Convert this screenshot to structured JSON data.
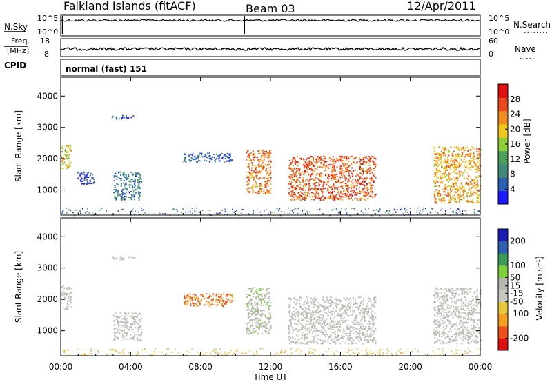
{
  "header": {
    "station": "Falkland Islands (fitACF)",
    "beam": "Beam 03",
    "date": "12/Apr/2011"
  },
  "top_panels": {
    "nsky_label": "N.Sky",
    "nsearch_label": "N.Search",
    "nsky_ticks_left": [
      "10^5",
      "10^0"
    ],
    "nsky_ticks_right": [
      "10^5",
      "10^0"
    ],
    "freq_label_1": "Freq.",
    "freq_label_2": "[MHz]",
    "freq_ticks": [
      "18",
      "8"
    ],
    "nave_label": "Nave",
    "nave_ticks": [
      "60",
      "0"
    ],
    "cpid_label": "CPID",
    "cpid_value": "normal (fast) 151"
  },
  "colors": {
    "power_scale": [
      "#1a1aff",
      "#2d5fb3",
      "#3f8a7a",
      "#4da05a",
      "#8fcf3a",
      "#f0c81e",
      "#f28c1e",
      "#ec4a1e",
      "#e01010"
    ],
    "velocity_scale": [
      "#e01010",
      "#f0501e",
      "#f5a020",
      "#e8c838",
      "#c8c8c0",
      "#b8b8b0",
      "#7ed03a",
      "#3a9a5a",
      "#2e5fb0",
      "#1a1ab4"
    ],
    "ground_scatter": "#bdbdb5"
  },
  "chart_data": [
    {
      "type": "heatmap",
      "title": "Power",
      "xlabel": "",
      "ylabel": "Slant Range [km]",
      "x_tick_labels": [
        "00:00",
        "04:00",
        "08:00",
        "12:00",
        "16:00",
        "20:00",
        "00:00"
      ],
      "xlim_hours": [
        0,
        24
      ],
      "y_tick_labels": [
        "1000",
        "2000",
        "3000",
        "4000"
      ],
      "ylim": [
        200,
        4600
      ],
      "colorbar": {
        "label": "Power [dB]",
        "ticks": [
          "28",
          "24",
          "20",
          "16",
          "12",
          "8",
          "4"
        ],
        "range": [
          0,
          32
        ]
      },
      "echo_regions": [
        {
          "t_start": 0.0,
          "t_end": 0.6,
          "r_min": 1700,
          "r_max": 2450,
          "level": 18
        },
        {
          "t_start": 0.9,
          "t_end": 1.9,
          "r_min": 1200,
          "r_max": 1600,
          "level": 4
        },
        {
          "t_start": 2.9,
          "t_end": 4.2,
          "r_min": 3280,
          "r_max": 3400,
          "level": 6
        },
        {
          "t_start": 3.0,
          "t_end": 4.6,
          "r_min": 700,
          "r_max": 1600,
          "level": 8
        },
        {
          "t_start": 7.0,
          "t_end": 9.8,
          "r_min": 1900,
          "r_max": 2200,
          "level": 5
        },
        {
          "t_start": 10.6,
          "t_end": 12.0,
          "r_min": 900,
          "r_max": 2300,
          "level": 24
        },
        {
          "t_start": 13.0,
          "t_end": 18.0,
          "r_min": 700,
          "r_max": 2100,
          "level": 26
        },
        {
          "t_start": 21.3,
          "t_end": 24.0,
          "r_min": 600,
          "r_max": 2400,
          "level": 22
        }
      ]
    },
    {
      "type": "heatmap",
      "title": "Velocity",
      "xlabel": "Time UT",
      "ylabel": "Slant Range [km]",
      "x_tick_labels": [
        "00:00",
        "04:00",
        "08:00",
        "12:00",
        "16:00",
        "20:00",
        "00:00"
      ],
      "xlim_hours": [
        0,
        24
      ],
      "y_tick_labels": [
        "1000",
        "2000",
        "3000",
        "4000"
      ],
      "ylim": [
        200,
        4600
      ],
      "colorbar": {
        "label": "Velocity [m s⁻¹]",
        "ticks": [
          "200",
          "100",
          "50",
          "15",
          "-15",
          "-50",
          "-100",
          "-200"
        ],
        "range": [
          -250,
          250
        ]
      },
      "echo_regions": [
        {
          "t_start": 0.0,
          "t_end": 0.6,
          "r_min": 1700,
          "r_max": 2450,
          "level": 0
        },
        {
          "t_start": 2.9,
          "t_end": 4.2,
          "r_min": 3280,
          "r_max": 3400,
          "level": 0
        },
        {
          "t_start": 3.0,
          "t_end": 4.6,
          "r_min": 700,
          "r_max": 1600,
          "level": 0
        },
        {
          "t_start": 7.0,
          "t_end": 9.8,
          "r_min": 1800,
          "r_max": 2200,
          "level": -150
        },
        {
          "t_start": 10.6,
          "t_end": 12.0,
          "r_min": 900,
          "r_max": 2400,
          "level": 30
        },
        {
          "t_start": 13.0,
          "t_end": 18.0,
          "r_min": 600,
          "r_max": 2100,
          "level": 0
        },
        {
          "t_start": 21.3,
          "t_end": 24.0,
          "r_min": 600,
          "r_max": 2400,
          "level": 0
        }
      ]
    }
  ]
}
